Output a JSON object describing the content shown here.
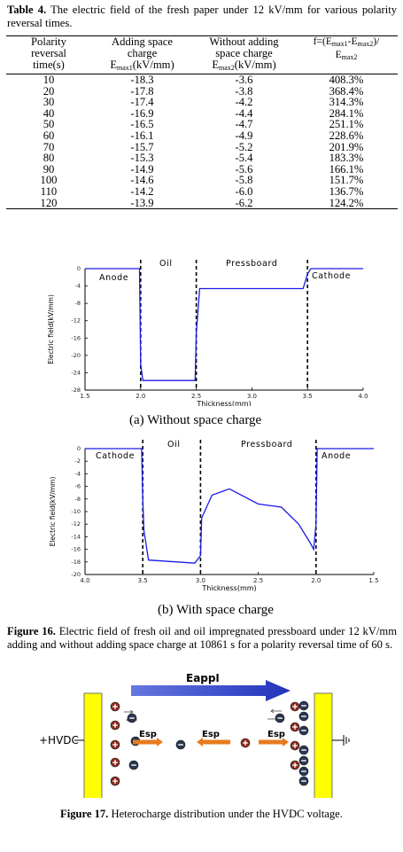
{
  "table4": {
    "caption_label": "Table 4.",
    "caption_text": " The electric field of the fresh paper under 12 kV/mm for various polarity reversal times.",
    "columns": [
      {
        "line1": "Polarity",
        "line2": "reversal",
        "line3": "time(s)"
      },
      {
        "line1": "Adding space",
        "line2": "charge",
        "line3a": "E",
        "line3sub": "max1",
        "line3b": "(kV/mm)"
      },
      {
        "line1": "Without adding",
        "line2": "space charge",
        "line3a": "E",
        "line3sub": "max2",
        "line3b": "(kV/mm)"
      },
      {
        "h1": "f=(E",
        "h1sub": "max1",
        "h2": "-E",
        "h2sub": "max2",
        "h3": ")/",
        "h4": "E",
        "h4sub": "max2"
      }
    ],
    "rows": [
      [
        "10",
        "-18.3",
        "-3.6",
        "408.3%"
      ],
      [
        "20",
        "-17.8",
        "-3.8",
        "368.4%"
      ],
      [
        "30",
        "-17.4",
        "-4.2",
        "314.3%"
      ],
      [
        "40",
        "-16.9",
        "-4.4",
        "284.1%"
      ],
      [
        "50",
        "-16.5",
        "-4.7",
        "251.1%"
      ],
      [
        "60",
        "-16.1",
        "-4.9",
        "228.6%"
      ],
      [
        "70",
        "-15.7",
        "-5.2",
        "201.9%"
      ],
      [
        "80",
        "-15.3",
        "-5.4",
        "183.3%"
      ],
      [
        "90",
        "-14.9",
        "-5.6",
        "166.1%"
      ],
      [
        "100",
        "-14.6",
        "-5.8",
        "151.7%"
      ],
      [
        "110",
        "-14.2",
        "-6.0",
        "136.7%"
      ],
      [
        "120",
        "-13.9",
        "-6.2",
        "124.2%"
      ]
    ]
  },
  "chart_data": [
    {
      "type": "line",
      "xlabel": "Thickness(mm)",
      "ylabel": "Electric field(kV/mm)",
      "xlim": [
        1.5,
        4.0
      ],
      "ylim": [
        -28,
        0
      ],
      "xticks": [
        "1.5",
        "2.0",
        "2.5",
        "3.0",
        "3.5",
        "4.0"
      ],
      "yticks": [
        "0",
        "-4",
        "-8",
        "-12",
        "-16",
        "-20",
        "-24",
        "-28"
      ],
      "region_labels": [
        "Anode",
        "Oil",
        "Pressboard",
        "Cathode"
      ],
      "boundaries": [
        2.0,
        2.5,
        3.5
      ],
      "color": "#1a1ae6",
      "series": [
        {
          "x": [
            1.5,
            1.99,
            2.0,
            2.02,
            2.49,
            2.5,
            2.53,
            3.46,
            3.5,
            3.53,
            4.0
          ],
          "y": [
            0,
            0,
            -22,
            -25.8,
            -25.8,
            -15,
            -4.6,
            -4.6,
            -1.2,
            0,
            0
          ]
        }
      ],
      "subcaption": "(a)  Without space charge"
    },
    {
      "type": "line",
      "xlabel": "Thickness(mm)",
      "ylabel": "Electric field(kV/mm)",
      "xlim": [
        4.0,
        1.5
      ],
      "ylim": [
        -20,
        0
      ],
      "xticks": [
        "4.0",
        "3.5",
        "3.0",
        "2.5",
        "2.0",
        "1.5"
      ],
      "yticks": [
        "0",
        "-2",
        "-4",
        "-6",
        "-8",
        "-10",
        "-12",
        "-14",
        "-16",
        "-18",
        "-20"
      ],
      "region_labels": [
        "Cathode",
        "Oil",
        "Pressboard",
        "Anode"
      ],
      "boundaries": [
        3.5,
        3.0,
        2.0
      ],
      "color": "#1a1ae6",
      "series": [
        {
          "x": [
            4.0,
            3.51,
            3.5,
            3.49,
            3.45,
            3.05,
            3.0,
            2.99,
            2.9,
            2.75,
            2.5,
            2.3,
            2.15,
            2.05,
            2.02,
            2.0,
            1.99,
            1.5
          ],
          "y": [
            0,
            0,
            -8,
            -13,
            -17.7,
            -18.2,
            -17,
            -11,
            -7.4,
            -6.4,
            -8.8,
            -9.3,
            -12,
            -15,
            -16,
            -12,
            0,
            0
          ]
        }
      ],
      "subcaption": "(b)  With space charge"
    }
  ],
  "figure16": {
    "label": "Figure 16.",
    "text": " Electric field of fresh oil and oil impregnated    pressboard under 12 kV/mm adding and without adding space charge at 10861 s for a polarity reversal time of 60 s."
  },
  "figure17": {
    "label_eappl": "Eappl",
    "label_esp": "Esp",
    "label_hvdc": "+HVDC",
    "caption_label": "Figure 17.",
    "caption_text": " Heterocharge distribution under the HVDC voltage.",
    "colors": {
      "electrode": "#ffff00",
      "arrow": "#3344cc",
      "esp_arrow": "#e87b20",
      "positive": "#8b2a1e",
      "negative": "#2a3850"
    }
  }
}
